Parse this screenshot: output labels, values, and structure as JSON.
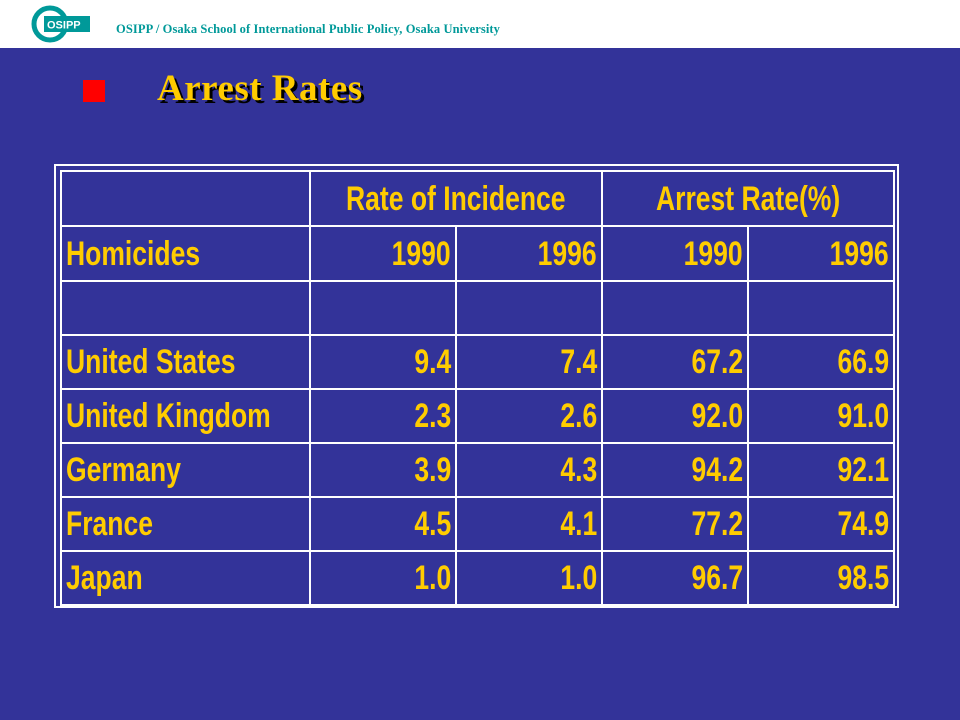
{
  "header": {
    "logo_text": "OSIPP",
    "title": "OSIPP / Osaka School of International Public Policy, Osaka University"
  },
  "slide": {
    "title": "Arrest Rates"
  },
  "table": {
    "group_headers": [
      "Rate of Incidence",
      "Arrest Rate(%)"
    ],
    "row_label_header": "Homicides",
    "years": [
      "1990",
      "1996",
      "1990",
      "1996"
    ],
    "rows": [
      {
        "country": "United States",
        "values": [
          "9.4",
          "7.4",
          "67.2",
          "66.9"
        ]
      },
      {
        "country": "United Kingdom",
        "values": [
          "2.3",
          "2.6",
          "92.0",
          "91.0"
        ]
      },
      {
        "country": "Germany",
        "values": [
          "3.9",
          "4.3",
          "94.2",
          "92.1"
        ]
      },
      {
        "country": "France",
        "values": [
          "4.5",
          "4.1",
          "77.2",
          "74.9"
        ]
      },
      {
        "country": "Japan",
        "values": [
          "1.0",
          "1.0",
          "96.7",
          "98.5"
        ]
      }
    ]
  },
  "colors": {
    "background": "#333399",
    "accent_text": "#ffcc00",
    "bullet": "#ff0000",
    "header_text": "#009999"
  }
}
